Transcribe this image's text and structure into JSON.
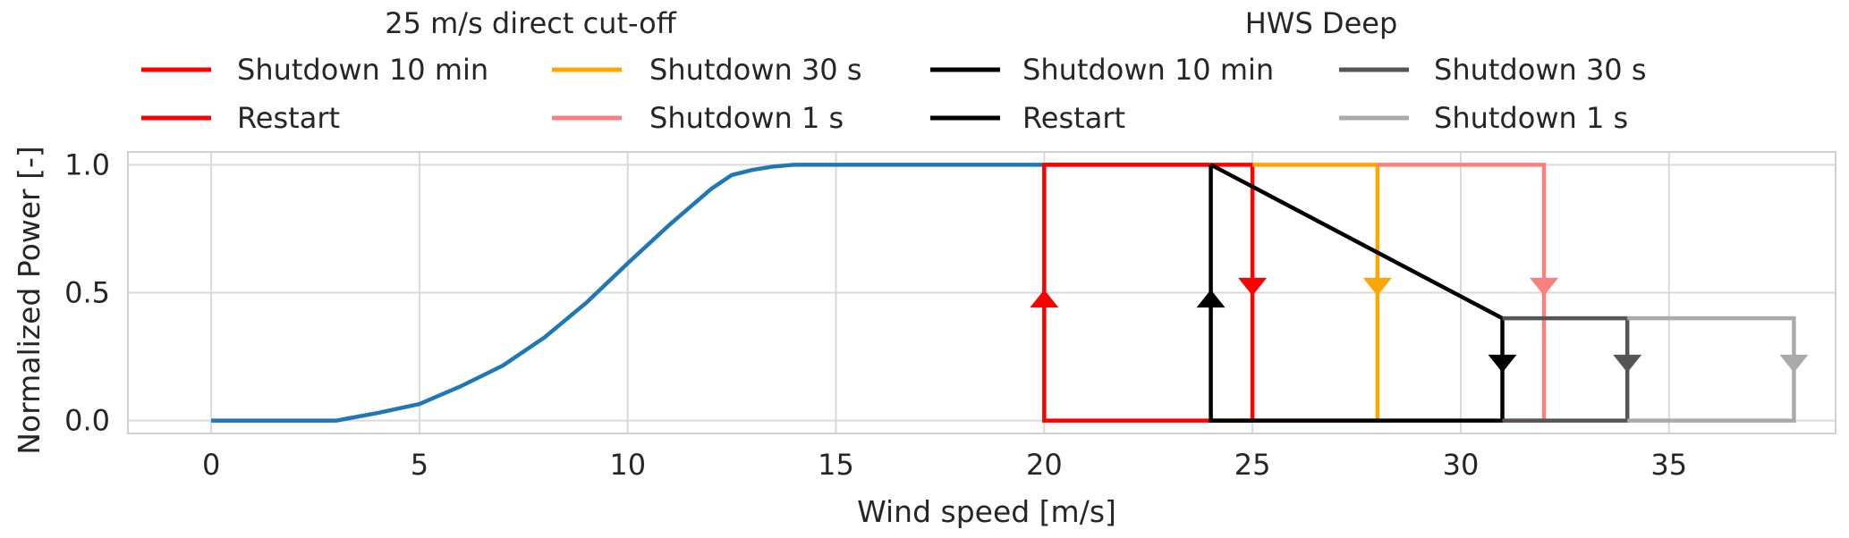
{
  "chart_data": {
    "type": "line",
    "xlabel": "Wind speed [m/s]",
    "ylabel": "Normalized Power [-]",
    "xlim": [
      -2,
      39
    ],
    "ylim": [
      -0.05,
      1.05
    ],
    "xticks": [
      0,
      5,
      10,
      15,
      20,
      25,
      30,
      35
    ],
    "yticks": [
      0.0,
      0.5,
      1.0
    ],
    "xtick_labels": [
      "0",
      "5",
      "10",
      "15",
      "20",
      "25",
      "30",
      "35"
    ],
    "ytick_labels": [
      "0.0",
      "0.5",
      "1.0"
    ],
    "grid": true,
    "legend_placement": "top",
    "legend_groups": [
      {
        "title": "25 m/s direct cut-off",
        "entries": [
          {
            "label": "Shutdown 10 min",
            "color": "#ff0000"
          },
          {
            "label": "Shutdown 30 s",
            "color": "#ffa500"
          },
          {
            "label": "Restart",
            "color": "#ff0000"
          },
          {
            "label": "Shutdown 1 s",
            "color": "#fa8080"
          }
        ]
      },
      {
        "title": "HWS Deep",
        "entries": [
          {
            "label": "Shutdown 10 min",
            "color": "#000000"
          },
          {
            "label": "Shutdown 30 s",
            "color": "#555555"
          },
          {
            "label": "Restart",
            "color": "#000000"
          },
          {
            "label": "Shutdown 1 s",
            "color": "#aaaaaa"
          }
        ]
      }
    ],
    "power_curve": {
      "color": "#1f77b4",
      "x": [
        0,
        1,
        2,
        3,
        4,
        5,
        6,
        7,
        8,
        9,
        10,
        11,
        12,
        12.5,
        13,
        13.5,
        14,
        15,
        20,
        24
      ],
      "y": [
        0,
        0,
        0,
        0,
        0.03,
        0.065,
        0.135,
        0.215,
        0.325,
        0.46,
        0.615,
        0.765,
        0.905,
        0.96,
        0.98,
        0.993,
        1.0,
        1.0,
        1.0,
        1.0
      ]
    },
    "series": [
      {
        "group": "25 m/s direct cut-off",
        "color": "#ff0000",
        "x": [
          24,
          25,
          25
        ],
        "y": [
          1,
          1,
          0
        ],
        "arrow": {
          "x": 25,
          "y": 0.53,
          "dir": "down"
        }
      },
      {
        "group": "25 m/s direct cut-off",
        "color": "#ff0000",
        "x": [
          25,
          20,
          20,
          24
        ],
        "y": [
          0,
          0,
          1,
          1
        ],
        "arrow": {
          "x": 20,
          "y": 0.47,
          "dir": "up"
        }
      },
      {
        "group": "25 m/s direct cut-off",
        "color": "#ffa500",
        "x": [
          25,
          28,
          28,
          25
        ],
        "y": [
          1,
          1,
          0,
          0
        ],
        "arrow": {
          "x": 28,
          "y": 0.53,
          "dir": "down"
        }
      },
      {
        "group": "25 m/s direct cut-off",
        "color": "#fa8080",
        "x": [
          28,
          32,
          32,
          31
        ],
        "y": [
          1,
          1,
          0,
          0
        ],
        "arrow": {
          "x": 32,
          "y": 0.53,
          "dir": "down"
        }
      },
      {
        "group": "HWS Deep",
        "color": "#000000",
        "x": [
          24,
          31,
          31
        ],
        "y": [
          1,
          0.4,
          0
        ],
        "arrow": {
          "x": 31,
          "y": 0.23,
          "dir": "down"
        }
      },
      {
        "group": "HWS Deep",
        "color": "#000000",
        "x": [
          31,
          24,
          24
        ],
        "y": [
          0,
          0,
          1
        ],
        "arrow": {
          "x": 24,
          "y": 0.47,
          "dir": "up"
        }
      },
      {
        "group": "HWS Deep",
        "color": "#555555",
        "x": [
          31,
          34,
          34,
          31
        ],
        "y": [
          0.4,
          0.4,
          0,
          0
        ],
        "arrow": {
          "x": 34,
          "y": 0.23,
          "dir": "down"
        }
      },
      {
        "group": "HWS Deep",
        "color": "#aaaaaa",
        "x": [
          34,
          38,
          38,
          34
        ],
        "y": [
          0.4,
          0.4,
          0,
          0
        ],
        "arrow": {
          "x": 38,
          "y": 0.23,
          "dir": "down"
        }
      }
    ]
  }
}
